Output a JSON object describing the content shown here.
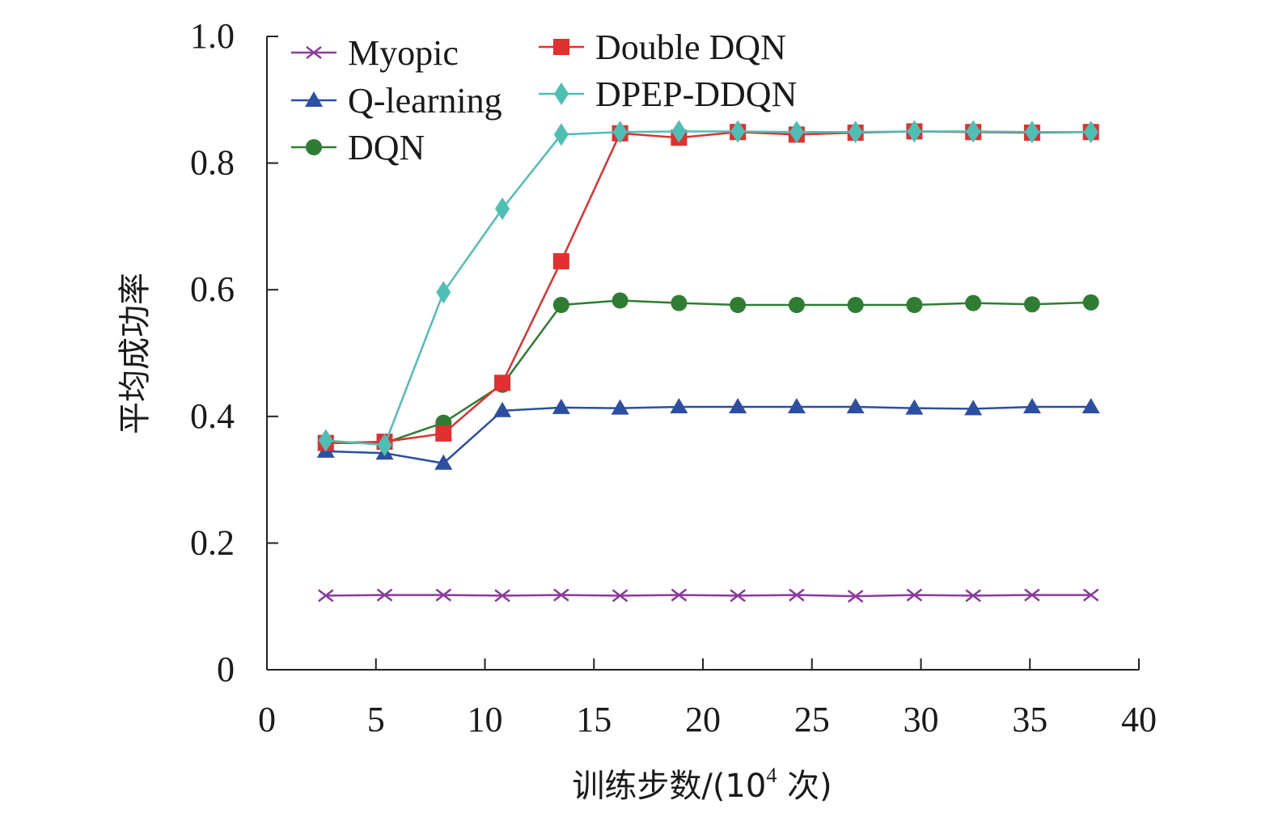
{
  "chart_data": {
    "type": "line",
    "title": "",
    "xlabel": "训练步数/(10⁴ 次)",
    "xlabel_parts": {
      "main": "训练步数/(10",
      "sup": "4",
      "unit": " 次)"
    },
    "ylabel": "平均成功率",
    "xlim": [
      0,
      40
    ],
    "ylim": [
      0,
      1.0
    ],
    "xticks": [
      0,
      5,
      10,
      15,
      20,
      25,
      30,
      35,
      40
    ],
    "xtick_labels": [
      "0",
      "5",
      "10",
      "15",
      "20",
      "25",
      "30",
      "35",
      "40"
    ],
    "yticks": [
      0,
      0.2,
      0.4,
      0.6,
      0.8,
      1.0
    ],
    "ytick_labels": [
      "0",
      "0.2",
      "0.4",
      "0.6",
      "0.8",
      "1.0"
    ],
    "legend_position": "top-left",
    "x": [
      2.7,
      5.4,
      8.1,
      10.8,
      13.5,
      16.2,
      18.9,
      21.6,
      24.3,
      27.0,
      29.7,
      32.4,
      35.1,
      37.8
    ],
    "series": [
      {
        "name": "Myopic",
        "marker": "x",
        "color": "#8b3a9e",
        "values": [
          0.117,
          0.118,
          0.118,
          0.117,
          0.118,
          0.117,
          0.118,
          0.117,
          0.118,
          0.116,
          0.118,
          0.117,
          0.118,
          0.118
        ]
      },
      {
        "name": "Q-learning",
        "marker": "triangle",
        "color": "#2d4fa2",
        "values": [
          0.345,
          0.342,
          0.326,
          0.409,
          0.414,
          0.413,
          0.415,
          0.415,
          0.415,
          0.415,
          0.413,
          0.412,
          0.415,
          0.415
        ]
      },
      {
        "name": "DQN",
        "marker": "circle",
        "color": "#2e7d32",
        "values": [
          0.358,
          0.358,
          0.39,
          0.45,
          0.576,
          0.583,
          0.579,
          0.576,
          0.576,
          0.576,
          0.576,
          0.579,
          0.577,
          0.58
        ]
      },
      {
        "name": "Double DQN",
        "marker": "square",
        "color": "#e03030",
        "values": [
          0.358,
          0.36,
          0.373,
          0.453,
          0.645,
          0.847,
          0.84,
          0.849,
          0.845,
          0.848,
          0.85,
          0.849,
          0.848,
          0.849
        ]
      },
      {
        "name": "DPEP-DDQN",
        "marker": "diamond",
        "color": "#4dbfb4",
        "values": [
          0.362,
          0.355,
          0.596,
          0.728,
          0.845,
          0.849,
          0.85,
          0.85,
          0.849,
          0.849,
          0.85,
          0.85,
          0.849,
          0.849
        ]
      }
    ]
  }
}
